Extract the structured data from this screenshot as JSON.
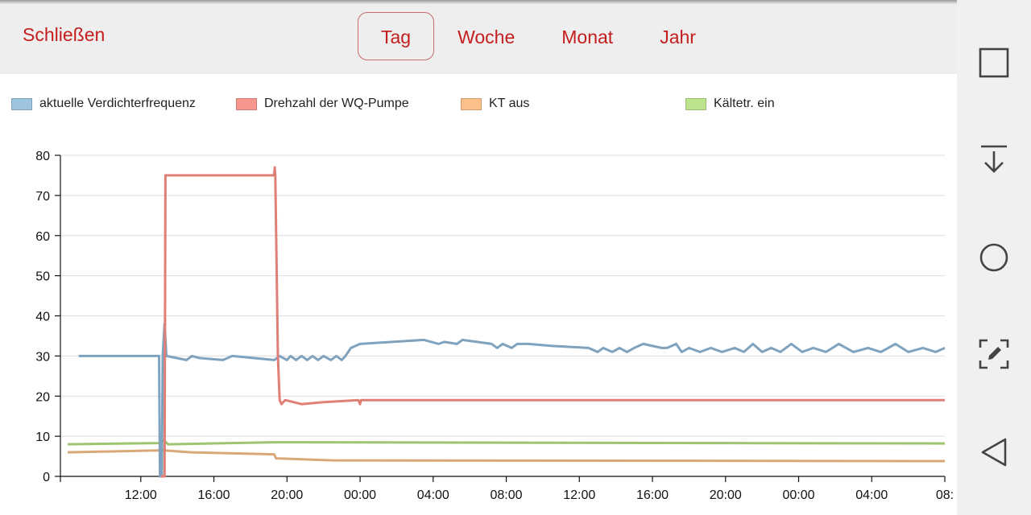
{
  "header": {
    "close_label": "Schließen",
    "tabs": [
      {
        "label": "Tag",
        "active": true
      },
      {
        "label": "Woche",
        "active": false
      },
      {
        "label": "Monat",
        "active": false
      },
      {
        "label": "Jahr",
        "active": false
      }
    ]
  },
  "nav": {
    "icons": [
      "square-icon",
      "download-icon",
      "circle-icon",
      "screenshot-edit-icon",
      "back-triangle-icon"
    ]
  },
  "colors": {
    "accent": "#c41e1e",
    "grid": "#dddddd"
  },
  "chart_data": {
    "type": "line",
    "title": "",
    "xlabel": "",
    "ylabel": "",
    "ylim": [
      0,
      80
    ],
    "yticks": [
      0,
      10,
      20,
      30,
      40,
      50,
      60,
      70,
      80
    ],
    "x_unit": "hours",
    "xlim": [
      7.6,
      56.0
    ],
    "xticks": [
      {
        "x": 12,
        "label": "12:00"
      },
      {
        "x": 16,
        "label": "16:00"
      },
      {
        "x": 20,
        "label": "20:00"
      },
      {
        "x": 24,
        "label": "00:00"
      },
      {
        "x": 28,
        "label": "04:00"
      },
      {
        "x": 32,
        "label": "08:00"
      },
      {
        "x": 36,
        "label": "12:00"
      },
      {
        "x": 40,
        "label": "16:00"
      },
      {
        "x": 44,
        "label": "20:00"
      },
      {
        "x": 48,
        "label": "00:00"
      },
      {
        "x": 52,
        "label": "04:00"
      },
      {
        "x": 56,
        "label": "08:"
      }
    ],
    "grid": true,
    "legend_position": "top",
    "series": [
      {
        "name": "aktuelle Verdichterfrequenz",
        "color": "#7fa3bf",
        "swatch": "#9ec5e0",
        "points": [
          [
            8.6,
            30
          ],
          [
            13.0,
            30
          ],
          [
            13.05,
            0
          ],
          [
            13.15,
            0
          ],
          [
            13.2,
            30
          ],
          [
            13.3,
            38
          ],
          [
            13.4,
            30
          ],
          [
            14.5,
            29
          ],
          [
            14.8,
            30
          ],
          [
            15.2,
            29.5
          ],
          [
            16.5,
            29
          ],
          [
            17.0,
            30
          ],
          [
            19.3,
            29
          ],
          [
            19.6,
            30
          ],
          [
            20.0,
            29
          ],
          [
            20.2,
            30
          ],
          [
            20.5,
            29
          ],
          [
            20.8,
            30
          ],
          [
            21.1,
            29
          ],
          [
            21.4,
            30
          ],
          [
            21.7,
            29
          ],
          [
            22.0,
            30
          ],
          [
            22.4,
            29
          ],
          [
            22.7,
            30
          ],
          [
            23.0,
            29
          ],
          [
            23.2,
            30
          ],
          [
            23.5,
            32
          ],
          [
            24.0,
            33
          ],
          [
            27.5,
            34
          ],
          [
            28.3,
            33
          ],
          [
            28.6,
            33.5
          ],
          [
            29.3,
            33
          ],
          [
            29.6,
            34
          ],
          [
            31.2,
            33
          ],
          [
            31.5,
            32
          ],
          [
            31.8,
            33
          ],
          [
            32.3,
            32
          ],
          [
            32.6,
            33
          ],
          [
            33.2,
            33
          ],
          [
            34.5,
            32.5
          ],
          [
            36.5,
            32
          ],
          [
            37.0,
            31
          ],
          [
            37.3,
            32
          ],
          [
            37.8,
            31
          ],
          [
            38.2,
            32
          ],
          [
            38.6,
            31
          ],
          [
            39.0,
            32
          ],
          [
            39.5,
            33
          ],
          [
            40.5,
            32
          ],
          [
            40.8,
            32
          ],
          [
            41.3,
            33
          ],
          [
            41.6,
            31
          ],
          [
            42.0,
            32
          ],
          [
            42.6,
            31
          ],
          [
            43.2,
            32
          ],
          [
            43.8,
            31
          ],
          [
            44.5,
            32
          ],
          [
            45.0,
            31
          ],
          [
            45.5,
            33
          ],
          [
            46.0,
            31
          ],
          [
            46.5,
            32
          ],
          [
            47.0,
            31
          ],
          [
            47.6,
            33
          ],
          [
            48.2,
            31
          ],
          [
            48.8,
            32
          ],
          [
            49.5,
            31
          ],
          [
            50.2,
            33
          ],
          [
            51.0,
            31
          ],
          [
            51.8,
            32
          ],
          [
            52.5,
            31
          ],
          [
            53.3,
            33
          ],
          [
            54.0,
            31
          ],
          [
            54.8,
            32
          ],
          [
            55.5,
            31
          ],
          [
            56.0,
            32
          ]
        ]
      },
      {
        "name": "Drehzahl der WQ-Pumpe",
        "color": "#e07f76",
        "swatch": "#f7968d",
        "points": [
          [
            13.1,
            0
          ],
          [
            13.3,
            0
          ],
          [
            13.35,
            75
          ],
          [
            19.3,
            75
          ],
          [
            19.33,
            77
          ],
          [
            19.36,
            75
          ],
          [
            19.5,
            30
          ],
          [
            19.6,
            19
          ],
          [
            19.7,
            18
          ],
          [
            19.9,
            19
          ],
          [
            20.8,
            18
          ],
          [
            22.0,
            18.5
          ],
          [
            23.9,
            19
          ],
          [
            24.0,
            18
          ],
          [
            24.05,
            19
          ],
          [
            56.0,
            19
          ]
        ]
      },
      {
        "name": "KT aus",
        "color": "#d9a877",
        "swatch": "#fcc08b",
        "points": [
          [
            8.0,
            6
          ],
          [
            13.2,
            6.5
          ],
          [
            14.8,
            6
          ],
          [
            19.3,
            5.5
          ],
          [
            19.4,
            4.5
          ],
          [
            22.5,
            4
          ],
          [
            56.0,
            3.8
          ]
        ]
      },
      {
        "name": "Kältetr. ein",
        "color": "#9ec470",
        "swatch": "#bde38d",
        "points": [
          [
            8.0,
            8
          ],
          [
            13.0,
            8.3
          ],
          [
            13.25,
            9
          ],
          [
            13.5,
            8
          ],
          [
            19.3,
            8.5
          ],
          [
            56.0,
            8.2
          ]
        ]
      }
    ]
  }
}
